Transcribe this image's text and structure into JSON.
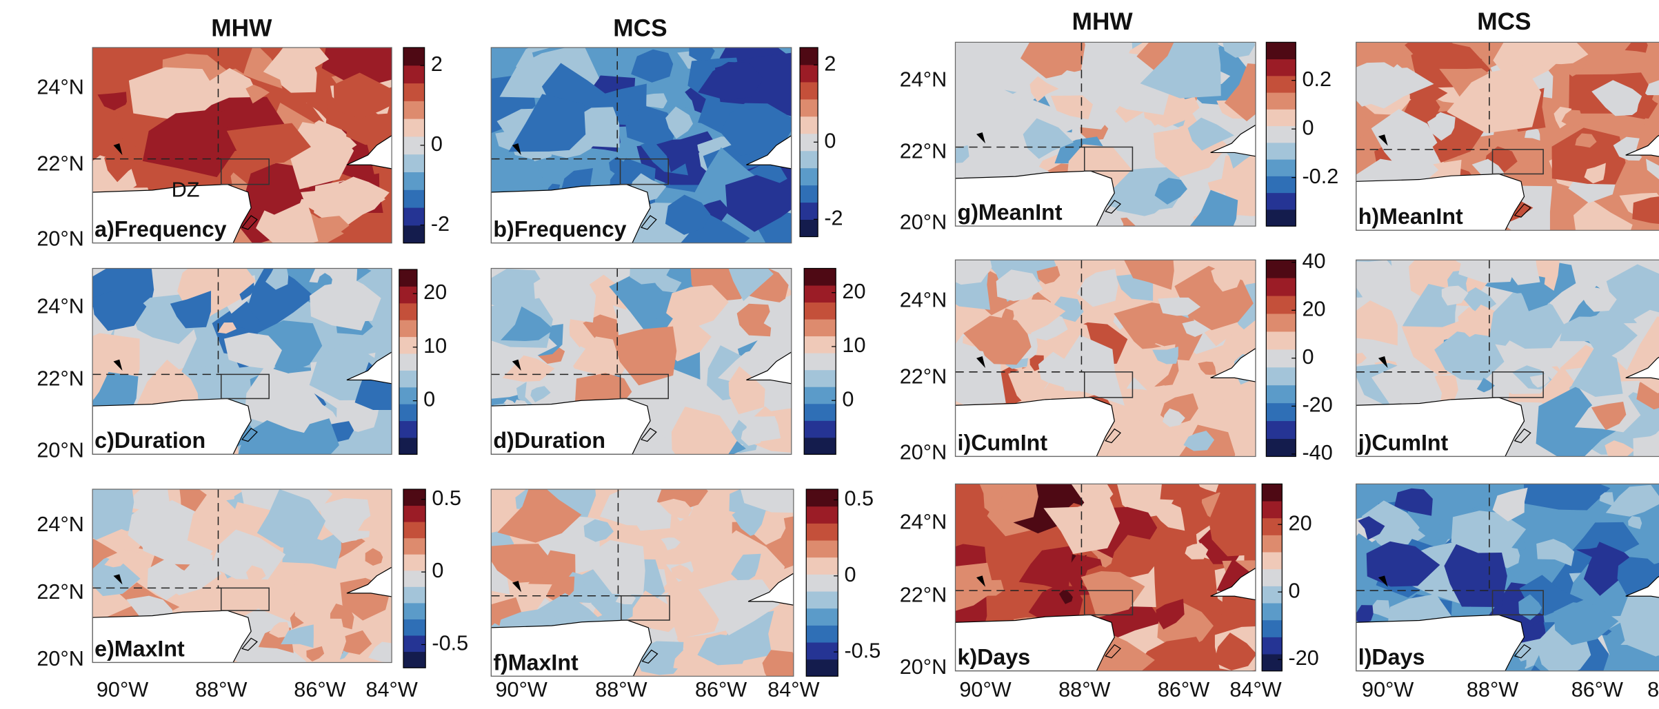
{
  "columns": [
    "MHW",
    "MCS",
    "MHW",
    "MCS"
  ],
  "latitude_ticks": [
    "24°N",
    "22°N",
    "20°N"
  ],
  "longitude_ticks": [
    "90°W",
    "88°W",
    "86°W",
    "84°W"
  ],
  "annotation": "DZ",
  "colormap": [
    "#141c4d",
    "#253494",
    "#2f6fb6",
    "#5b9bc9",
    "#a3c4d9",
    "#d6d7da",
    "#efc9b8",
    "#dd8b6e",
    "#c4503a",
    "#9b1c26",
    "#4e0914"
  ],
  "panels": [
    {
      "label": "a)Frequency",
      "colorbar": {
        "lim": [
          -2.45,
          2.45
        ],
        "ticks": [
          2,
          0,
          -2
        ]
      }
    },
    {
      "label": "b)Frequency",
      "colorbar": {
        "lim": [
          -2.45,
          2.45
        ],
        "ticks": [
          2,
          0,
          -2
        ]
      }
    },
    {
      "label": "c)Duration",
      "colorbar": {
        "lim": [
          -10,
          24.5
        ],
        "ticks": [
          20,
          10,
          0
        ]
      }
    },
    {
      "label": "d)Duration",
      "colorbar": {
        "lim": [
          -10,
          24.5
        ],
        "ticks": [
          20,
          10,
          0
        ]
      }
    },
    {
      "label": "e)MaxInt",
      "colorbar": {
        "lim": [
          -0.66,
          0.57
        ],
        "ticks": [
          0.5,
          0,
          -0.5
        ]
      }
    },
    {
      "label": "f)MaxInt",
      "colorbar": {
        "lim": [
          -0.66,
          0.57
        ],
        "ticks": [
          0.5,
          0,
          -0.5
        ]
      }
    },
    {
      "label": "g)MeanInt",
      "colorbar": {
        "lim": [
          -0.4,
          0.357
        ],
        "ticks": [
          0.2,
          0,
          -0.2
        ]
      }
    },
    {
      "label": "h)MeanInt"
    },
    {
      "label": "i)CumInt",
      "colorbar": {
        "lim": [
          -41,
          41
        ],
        "ticks": [
          40,
          20,
          0,
          -20,
          -40
        ]
      }
    },
    {
      "label": "j)CumInt"
    },
    {
      "label": "k)Days",
      "colorbar": {
        "lim": [
          -23.4,
          32
        ],
        "ticks": [
          20,
          0,
          -20
        ]
      }
    },
    {
      "label": "l)Days"
    }
  ]
}
